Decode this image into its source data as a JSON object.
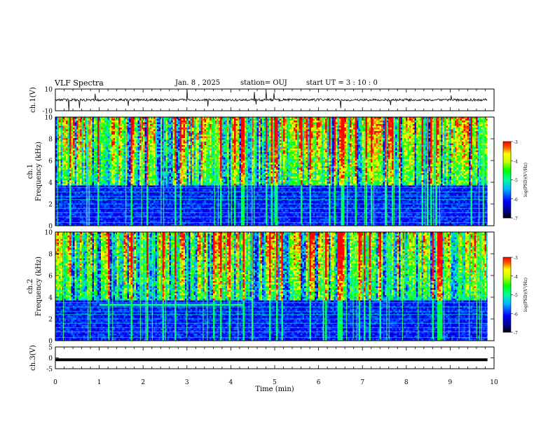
{
  "header": {
    "title": "VLF Spectra",
    "date": "Jan. 8 , 2025",
    "station": "station= OUJ",
    "start": "start UT = 3 : 10 : 0"
  },
  "chart_data": [
    {
      "type": "line",
      "panel": "ch1-waveform",
      "ylabel": "ch.1(V)",
      "ylim": [
        -10,
        10
      ],
      "yticks": [
        "10",
        "-10"
      ],
      "xlim": [
        0,
        10
      ],
      "description_values": "noisy waveform centred near 0 V with sporadic spikes"
    },
    {
      "type": "heatmap",
      "panel": "ch1-spectrogram",
      "ylabel": "ch.1 Frequency (kHz)",
      "ylim": [
        0,
        10
      ],
      "yticks": [
        "0",
        "2",
        "4",
        "6",
        "8",
        "10"
      ],
      "xlim": [
        0,
        9.85
      ],
      "colorbar": {
        "label": "log(PSD)(V²/Hz)",
        "range": [
          -7,
          -3
        ],
        "ticks": [
          "-3",
          "-4",
          "-5",
          "-6",
          "-7"
        ]
      }
    },
    {
      "type": "heatmap",
      "panel": "ch2-spectrogram",
      "ylabel": "ch.2 Frequency (kHz)",
      "ylim": [
        0,
        10
      ],
      "yticks": [
        "0",
        "2",
        "4",
        "6",
        "8",
        "10"
      ],
      "xlim": [
        0,
        9.85
      ],
      "colorbar": {
        "label": "log(PSD)(V²/Hz)",
        "range": [
          -7,
          -3
        ],
        "ticks": [
          "-3",
          "-4",
          "-5",
          "-6",
          "-7"
        ]
      }
    },
    {
      "type": "line",
      "panel": "ch3-waveform",
      "ylabel": "ch.3(V)",
      "ylim": [
        -5,
        5
      ],
      "yticks": [
        "5",
        "0",
        "-5"
      ],
      "x": [
        0,
        9.85
      ],
      "y": [
        -0.9,
        -0.9
      ]
    }
  ],
  "xaxis": {
    "label": "Time (min)",
    "ticks": [
      "0",
      "1",
      "2",
      "3",
      "4",
      "5",
      "6",
      "7",
      "8",
      "9",
      "10"
    ],
    "range": [
      0,
      10
    ]
  },
  "colors": {
    "spec_low": "#00007f",
    "spec_mid": "#00ff00",
    "spec_high": "#ff0000"
  }
}
